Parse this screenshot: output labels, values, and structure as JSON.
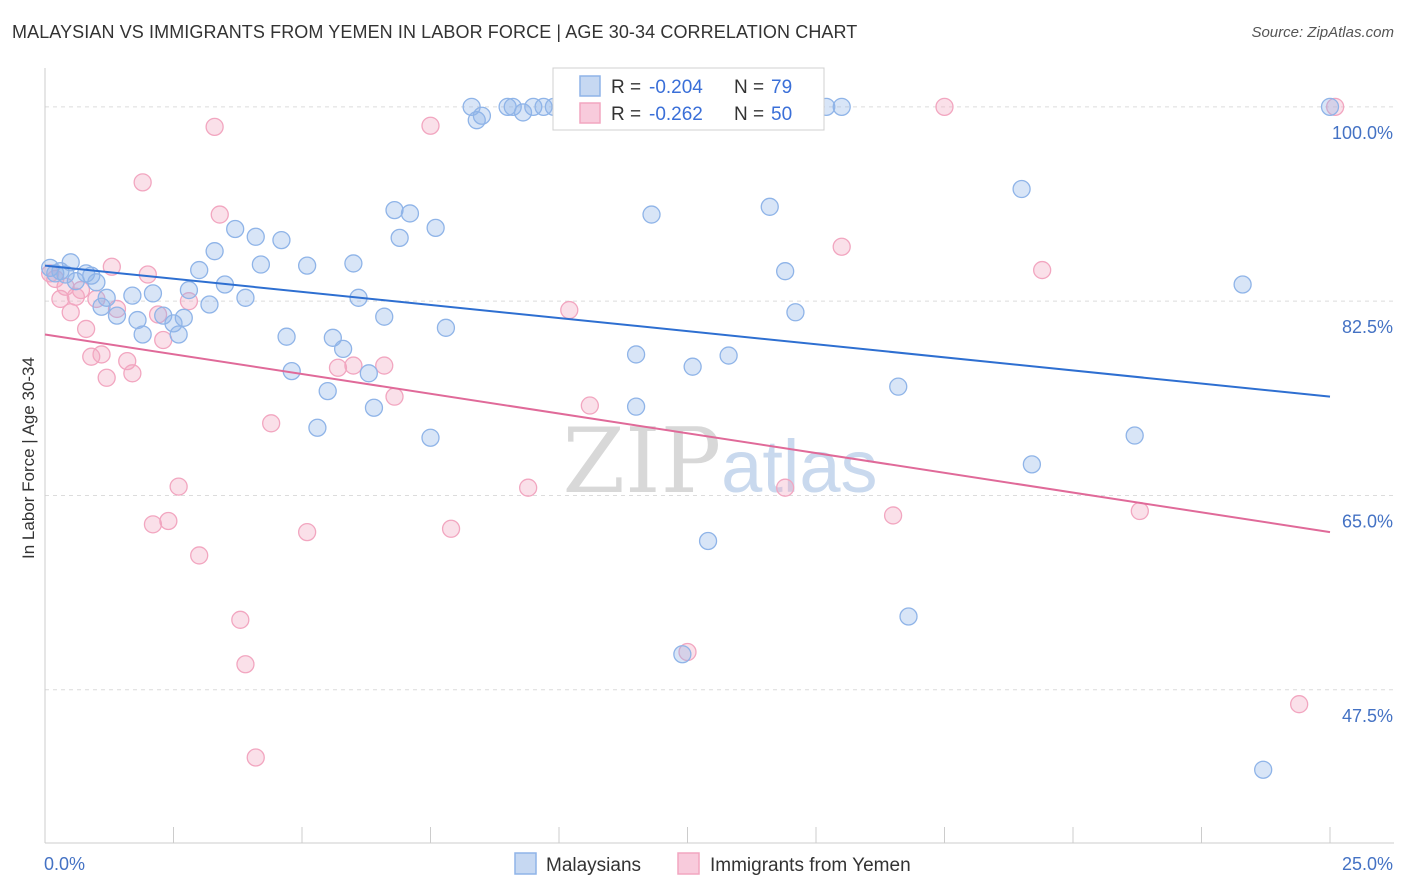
{
  "chart_data": {
    "type": "scatter",
    "title": "MALAYSIAN VS IMMIGRANTS FROM YEMEN IN LABOR FORCE | AGE 30-34 CORRELATION CHART",
    "source": "Source: ZipAtlas.com",
    "xlabel": "",
    "ylabel": "In Labor Force | Age 30-34",
    "xlim": [
      0,
      25
    ],
    "ylim": [
      33.7,
      103.5
    ],
    "x_tick_labels": [
      "0.0%",
      "25.0%"
    ],
    "y_ticks": [
      100.0,
      82.5,
      65.0,
      47.5
    ],
    "y_tick_labels": [
      "100.0%",
      "82.5%",
      "65.0%",
      "47.5%"
    ],
    "grid": true,
    "watermark": "ZIPatlas",
    "legend": {
      "r_label": "R =",
      "n_label": "N =",
      "entries": [
        {
          "name": "Malaysians",
          "r": "-0.204",
          "n": "79",
          "color": "#8fb4e8",
          "line_color": "#2e6fd1"
        },
        {
          "name": "Immigrants from Yemen",
          "r": "-0.262",
          "n": "50",
          "color": "#f2a6c0",
          "line_color": "#e06a99"
        }
      ]
    },
    "series": [
      {
        "name": "Malaysians",
        "trend": {
          "x": [
            0,
            25
          ],
          "y": [
            85.7,
            73.9
          ]
        },
        "points": [
          [
            0.1,
            85.5
          ],
          [
            0.2,
            85.0
          ],
          [
            0.3,
            85.2
          ],
          [
            0.4,
            84.9
          ],
          [
            0.5,
            86.0
          ],
          [
            0.6,
            84.3
          ],
          [
            0.8,
            85.0
          ],
          [
            0.9,
            84.8
          ],
          [
            1.0,
            84.2
          ],
          [
            1.1,
            82.0
          ],
          [
            1.2,
            82.8
          ],
          [
            1.4,
            81.2
          ],
          [
            1.7,
            83.0
          ],
          [
            1.8,
            80.8
          ],
          [
            1.9,
            79.5
          ],
          [
            2.1,
            83.2
          ],
          [
            2.3,
            81.2
          ],
          [
            2.5,
            80.5
          ],
          [
            2.6,
            79.5
          ],
          [
            2.7,
            81.0
          ],
          [
            2.8,
            83.5
          ],
          [
            3.0,
            85.3
          ],
          [
            3.2,
            82.2
          ],
          [
            3.3,
            87.0
          ],
          [
            3.5,
            84.0
          ],
          [
            3.7,
            89.0
          ],
          [
            3.9,
            82.8
          ],
          [
            4.1,
            88.3
          ],
          [
            4.2,
            85.8
          ],
          [
            4.6,
            88.0
          ],
          [
            4.7,
            79.3
          ],
          [
            4.8,
            76.2
          ],
          [
            5.1,
            85.7
          ],
          [
            5.3,
            71.1
          ],
          [
            5.5,
            74.4
          ],
          [
            5.6,
            79.2
          ],
          [
            5.8,
            78.2
          ],
          [
            6.0,
            85.9
          ],
          [
            6.1,
            82.8
          ],
          [
            6.3,
            76.0
          ],
          [
            6.4,
            72.9
          ],
          [
            6.6,
            81.1
          ],
          [
            6.8,
            90.7
          ],
          [
            6.9,
            88.2
          ],
          [
            7.1,
            90.4
          ],
          [
            7.5,
            70.2
          ],
          [
            7.6,
            89.1
          ],
          [
            7.8,
            80.1
          ],
          [
            8.3,
            100.0
          ],
          [
            8.4,
            98.8
          ],
          [
            8.5,
            99.2
          ],
          [
            9.0,
            100.0
          ],
          [
            9.1,
            100.0
          ],
          [
            9.3,
            99.5
          ],
          [
            9.5,
            100.0
          ],
          [
            9.7,
            100.0
          ],
          [
            9.9,
            100.0
          ],
          [
            10.1,
            100.0
          ],
          [
            10.2,
            100.0
          ],
          [
            11.5,
            77.7
          ],
          [
            11.5,
            73.0
          ],
          [
            11.8,
            90.3
          ],
          [
            12.4,
            50.7
          ],
          [
            12.6,
            76.6
          ],
          [
            12.9,
            60.9
          ],
          [
            13.3,
            77.6
          ],
          [
            14.1,
            91.0
          ],
          [
            14.4,
            85.2
          ],
          [
            14.6,
            81.5
          ],
          [
            15.2,
            100.0
          ],
          [
            15.5,
            100.0
          ],
          [
            16.6,
            74.8
          ],
          [
            16.8,
            54.1
          ],
          [
            19.0,
            92.6
          ],
          [
            19.2,
            67.8
          ],
          [
            21.2,
            70.4
          ],
          [
            23.3,
            84.0
          ],
          [
            23.7,
            40.3
          ],
          [
            25.0,
            100.0
          ]
        ]
      },
      {
        "name": "Immigrants from Yemen",
        "trend": {
          "x": [
            0,
            25
          ],
          "y": [
            79.5,
            61.7
          ]
        },
        "points": [
          [
            0.1,
            85.0
          ],
          [
            0.2,
            84.5
          ],
          [
            0.3,
            82.7
          ],
          [
            0.4,
            83.8
          ],
          [
            0.5,
            81.5
          ],
          [
            0.6,
            82.9
          ],
          [
            0.7,
            83.5
          ],
          [
            0.8,
            80.0
          ],
          [
            0.9,
            77.5
          ],
          [
            1.0,
            82.7
          ],
          [
            1.1,
            77.7
          ],
          [
            1.2,
            75.6
          ],
          [
            1.3,
            85.6
          ],
          [
            1.4,
            81.8
          ],
          [
            1.6,
            77.1
          ],
          [
            1.7,
            76.0
          ],
          [
            1.9,
            93.2
          ],
          [
            2.0,
            84.9
          ],
          [
            2.1,
            62.4
          ],
          [
            2.2,
            81.3
          ],
          [
            2.3,
            79.0
          ],
          [
            2.4,
            62.7
          ],
          [
            2.6,
            65.8
          ],
          [
            2.8,
            82.5
          ],
          [
            3.0,
            59.6
          ],
          [
            3.3,
            98.2
          ],
          [
            3.4,
            90.3
          ],
          [
            3.8,
            53.8
          ],
          [
            3.9,
            49.8
          ],
          [
            4.1,
            41.4
          ],
          [
            4.4,
            71.5
          ],
          [
            5.1,
            61.7
          ],
          [
            5.7,
            76.5
          ],
          [
            6.0,
            76.7
          ],
          [
            6.6,
            76.7
          ],
          [
            6.8,
            73.9
          ],
          [
            7.5,
            98.3
          ],
          [
            7.9,
            62.0
          ],
          [
            9.4,
            65.7
          ],
          [
            10.2,
            81.7
          ],
          [
            10.6,
            73.1
          ],
          [
            12.5,
            50.9
          ],
          [
            14.4,
            65.7
          ],
          [
            15.5,
            87.4
          ],
          [
            16.5,
            63.2
          ],
          [
            17.5,
            100.0
          ],
          [
            19.4,
            85.3
          ],
          [
            21.3,
            63.6
          ],
          [
            24.4,
            46.2
          ],
          [
            25.1,
            100.0
          ]
        ]
      }
    ]
  }
}
